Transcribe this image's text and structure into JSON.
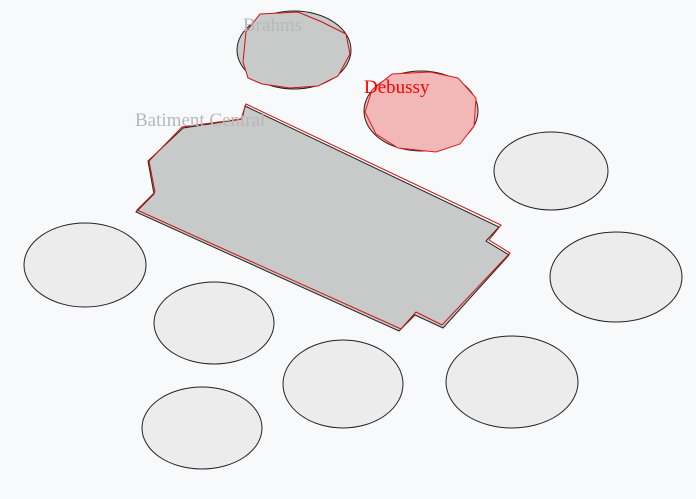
{
  "map": {
    "labels": {
      "brahms": "Brahms",
      "debussy": "Debussy",
      "batiment_central": "Batiment Central"
    },
    "selected": "debussy",
    "colors": {
      "background": "#f8f9fb",
      "building_fill": "#c8c9c9",
      "building_outline": "#222222",
      "selected_fill": "#f2b8b8",
      "selected_outline": "#e11a1a",
      "highlight_outline": "#cc1111",
      "empty_zone_fill": "#ececec",
      "empty_zone_outline": "#222222",
      "faded_label": "#b8b8b8",
      "selected_label": "#ff0000"
    }
  }
}
